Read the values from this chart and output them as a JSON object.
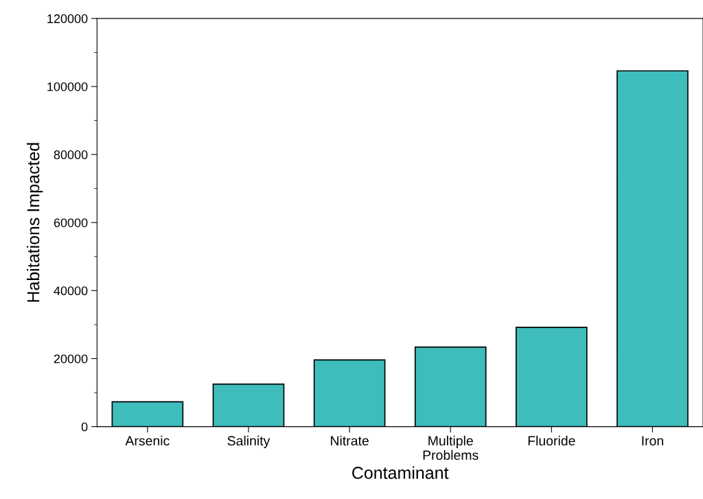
{
  "chart_data": {
    "type": "bar",
    "xlabel": "Contaminant",
    "ylabel": "Habitations Impacted",
    "categories": [
      "Arsenic",
      "Salinity",
      "Nitrate",
      "Multiple\nProblems",
      "Fluoride",
      "Iron"
    ],
    "values": [
      7300,
      12500,
      19600,
      23400,
      29200,
      104600
    ],
    "color": "#3fbcbc",
    "ylim": [
      0,
      120000
    ],
    "yticks": [
      0,
      20000,
      40000,
      60000,
      80000,
      100000,
      120000
    ],
    "grid": false
  }
}
